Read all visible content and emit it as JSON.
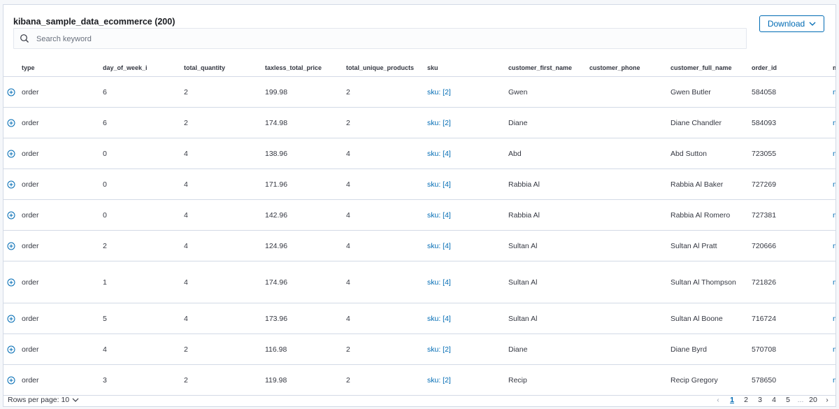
{
  "header": {
    "title": "kibana_sample_data_ecommerce (200)",
    "download_label": "Download",
    "search_placeholder": "Search keyword"
  },
  "table": {
    "columns": [
      "type",
      "day_of_week_i",
      "total_quantity",
      "taxless_total_price",
      "total_unique_products",
      "sku",
      "customer_first_name",
      "customer_phone",
      "customer_full_name",
      "order_id",
      "m"
    ],
    "rows": [
      {
        "type": "order",
        "day_of_week_i": "6",
        "total_quantity": "2",
        "taxless_total_price": "199.98",
        "total_unique_products": "2",
        "sku": "sku: [2]",
        "customer_first_name": "Gwen",
        "customer_phone": "",
        "customer_full_name": "Gwen Butler",
        "order_id": "584058",
        "m": "m"
      },
      {
        "type": "order",
        "day_of_week_i": "6",
        "total_quantity": "2",
        "taxless_total_price": "174.98",
        "total_unique_products": "2",
        "sku": "sku: [2]",
        "customer_first_name": "Diane",
        "customer_phone": "",
        "customer_full_name": "Diane Chandler",
        "order_id": "584093",
        "m": "m"
      },
      {
        "type": "order",
        "day_of_week_i": "0",
        "total_quantity": "4",
        "taxless_total_price": "138.96",
        "total_unique_products": "4",
        "sku": "sku: [4]",
        "customer_first_name": "Abd",
        "customer_phone": "",
        "customer_full_name": "Abd Sutton",
        "order_id": "723055",
        "m": "m"
      },
      {
        "type": "order",
        "day_of_week_i": "0",
        "total_quantity": "4",
        "taxless_total_price": "171.96",
        "total_unique_products": "4",
        "sku": "sku: [4]",
        "customer_first_name": "Rabbia Al",
        "customer_phone": "",
        "customer_full_name": "Rabbia Al Baker",
        "order_id": "727269",
        "m": "m"
      },
      {
        "type": "order",
        "day_of_week_i": "0",
        "total_quantity": "4",
        "taxless_total_price": "142.96",
        "total_unique_products": "4",
        "sku": "sku: [4]",
        "customer_first_name": "Rabbia Al",
        "customer_phone": "",
        "customer_full_name": "Rabbia Al Romero",
        "order_id": "727381",
        "m": "m"
      },
      {
        "type": "order",
        "day_of_week_i": "2",
        "total_quantity": "4",
        "taxless_total_price": "124.96",
        "total_unique_products": "4",
        "sku": "sku: [4]",
        "customer_first_name": "Sultan Al",
        "customer_phone": "",
        "customer_full_name": "Sultan Al Pratt",
        "order_id": "720666",
        "m": "m"
      },
      {
        "type": "order",
        "day_of_week_i": "1",
        "total_quantity": "4",
        "taxless_total_price": "174.96",
        "total_unique_products": "4",
        "sku": "sku: [4]",
        "customer_first_name": "Sultan Al",
        "customer_phone": "",
        "customer_full_name": "Sultan Al Thompson",
        "order_id": "721826",
        "m": "m"
      },
      {
        "type": "order",
        "day_of_week_i": "5",
        "total_quantity": "4",
        "taxless_total_price": "173.96",
        "total_unique_products": "4",
        "sku": "sku: [4]",
        "customer_first_name": "Sultan Al",
        "customer_phone": "",
        "customer_full_name": "Sultan Al Boone",
        "order_id": "716724",
        "m": "m"
      },
      {
        "type": "order",
        "day_of_week_i": "4",
        "total_quantity": "2",
        "taxless_total_price": "116.98",
        "total_unique_products": "2",
        "sku": "sku: [2]",
        "customer_first_name": "Diane",
        "customer_phone": "",
        "customer_full_name": "Diane Byrd",
        "order_id": "570708",
        "m": "m"
      },
      {
        "type": "order",
        "day_of_week_i": "3",
        "total_quantity": "2",
        "taxless_total_price": "119.98",
        "total_unique_products": "2",
        "sku": "sku: [2]",
        "customer_first_name": "Recip",
        "customer_phone": "",
        "customer_full_name": "Recip Gregory",
        "order_id": "578650",
        "m": "m"
      }
    ]
  },
  "footer": {
    "rows_per_page_label": "Rows per page: 10",
    "pages": [
      "1",
      "2",
      "3",
      "4",
      "5"
    ],
    "current_page": "1",
    "ellipsis": "...",
    "last_page": "20"
  },
  "colors": {
    "accent": "#006bb4",
    "border": "#d3dae6",
    "text": "#343741"
  },
  "icons": {
    "search": "search-icon",
    "download_caret": "chevron-down-icon",
    "expand": "expand-row-icon",
    "prev": "arrow-left-icon",
    "next": "arrow-right-icon"
  }
}
